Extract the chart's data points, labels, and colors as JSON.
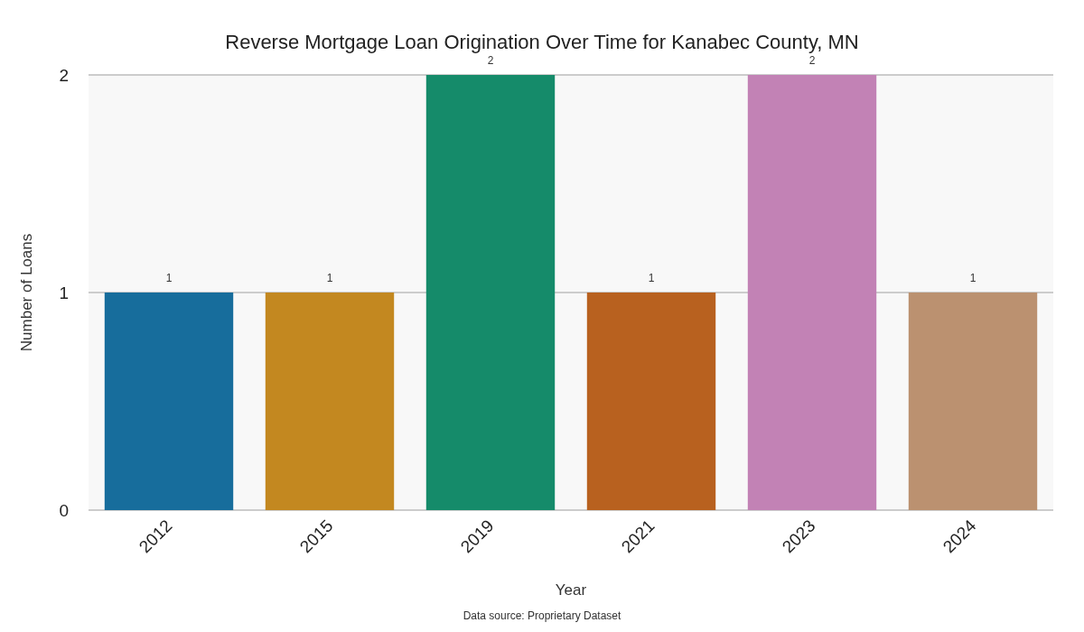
{
  "chart_data": {
    "type": "bar",
    "title": "Reverse Mortgage Loan Origination Over Time for Kanabec County, MN",
    "xlabel": "Year",
    "ylabel": "Number of Loans",
    "categories": [
      "2012",
      "2015",
      "2019",
      "2021",
      "2023",
      "2024"
    ],
    "values": [
      1,
      1,
      2,
      1,
      2,
      1
    ],
    "colors": [
      "#176d9c",
      "#c38820",
      "#158b6a",
      "#b8611f",
      "#c282b5",
      "#bb9170"
    ],
    "ylim": [
      0,
      2
    ],
    "yticks": [
      0,
      1,
      2
    ],
    "grid": "y",
    "data_labels": true,
    "annotations": [
      "Data source: Proprietary Dataset"
    ]
  }
}
